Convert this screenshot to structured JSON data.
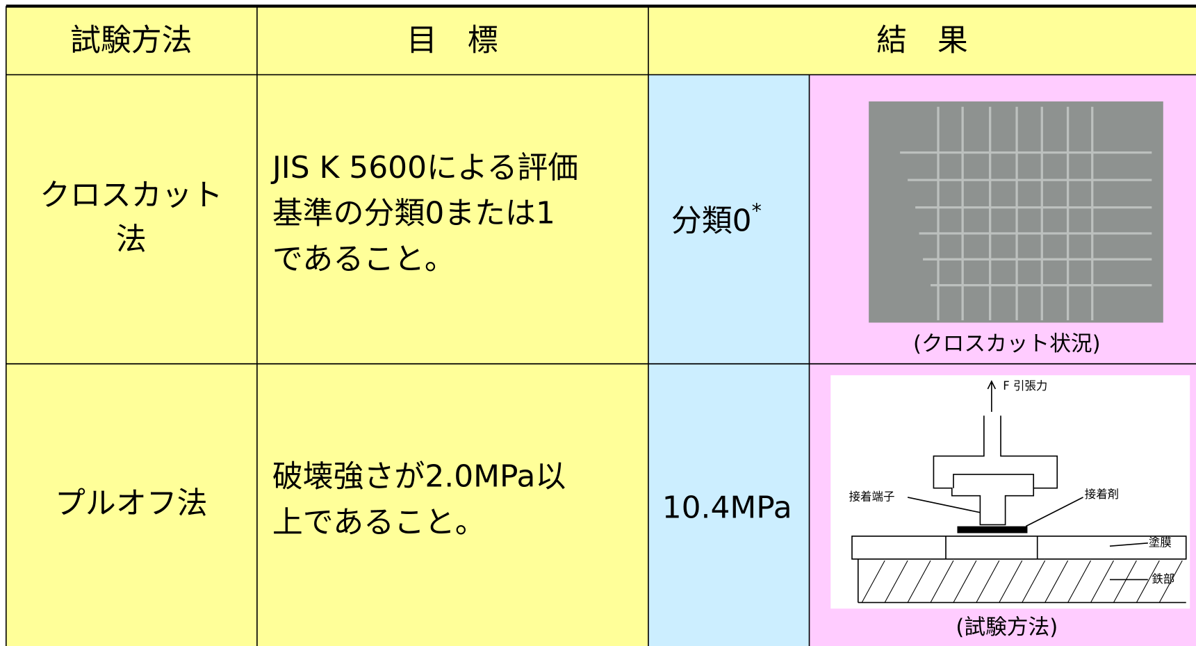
{
  "table": {
    "header": [
      "試験方法",
      "目　標",
      "結　果"
    ],
    "rows": [
      {
        "method": [
          "クロスカット",
          "法"
        ],
        "target": [
          "JIS K 5600による評価",
          "基準の分類0または1",
          "であること。"
        ],
        "result": "分類0",
        "result_note": "*",
        "caption": "(クロスカット状況)"
      },
      {
        "method": [
          "プルオフ法"
        ],
        "target": [
          "破壊強さが2.0MPa以",
          "上であること。"
        ],
        "result": "10.4MPa",
        "caption": "(試験方法)"
      }
    ]
  },
  "diagram": {
    "force": "F 引張力",
    "terminal": "接着端子",
    "adhesive": "接着剤",
    "coating": "塗膜",
    "steel": "鉄部"
  }
}
